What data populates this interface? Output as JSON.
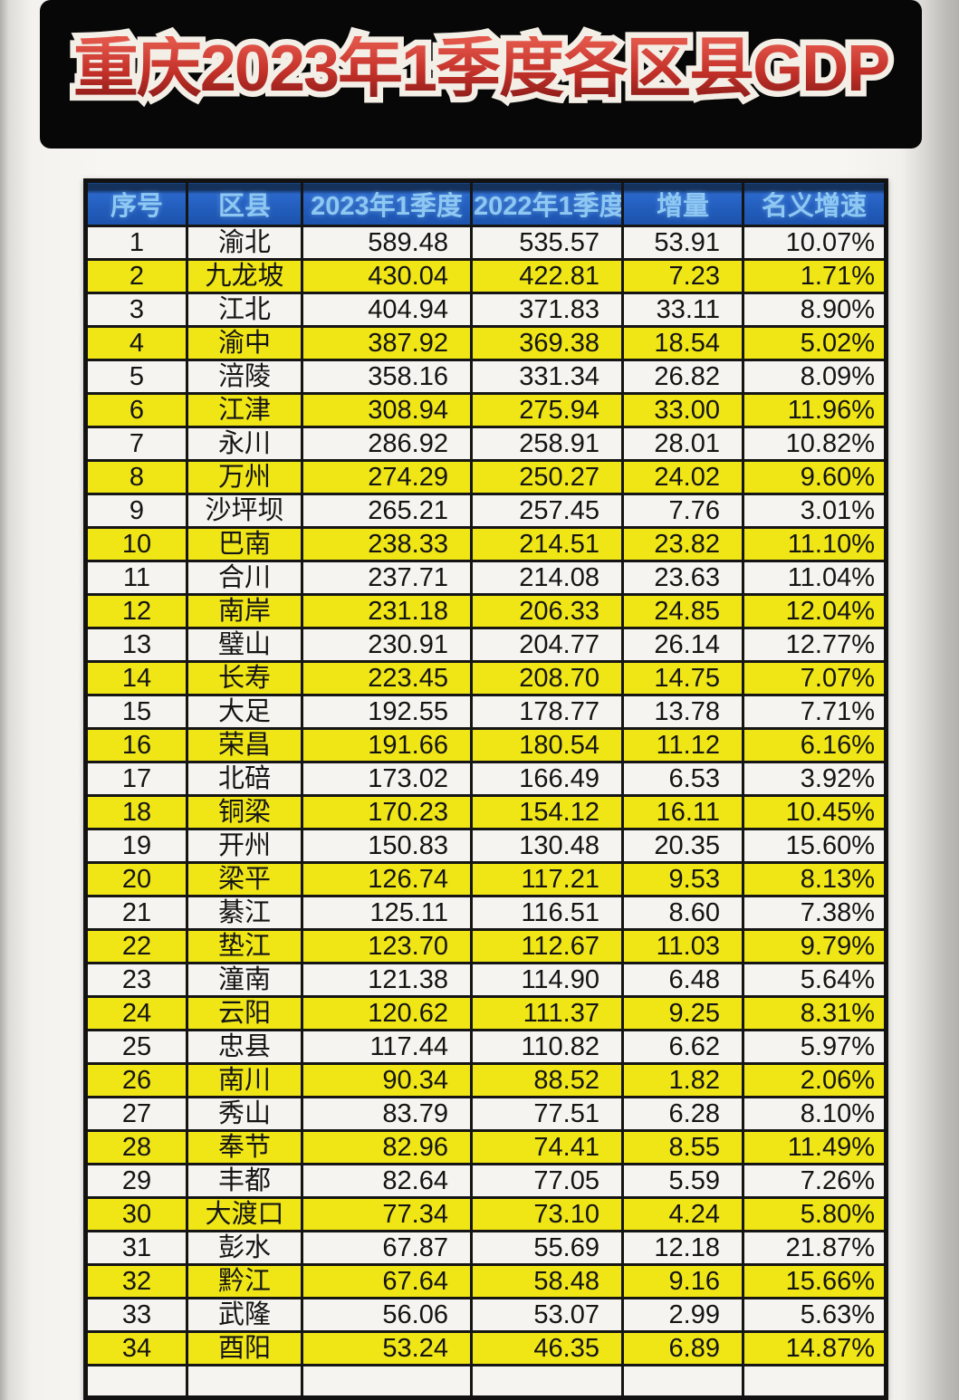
{
  "page": {
    "title": "重庆2023年1季度各区县GDP"
  },
  "colors": {
    "banner_background": "#070707",
    "title_red": "#c33129",
    "title_outline_white": "#f3eee6",
    "header_blue": "#1b52ac",
    "header_text_blue": "#8ec8f2",
    "row_yellow": "#f0e616",
    "row_white": "#f5f4f0",
    "grid_border": "#151515"
  },
  "chart_data": {
    "type": "table",
    "title": "重庆2023年1季度各区县GDP",
    "columns": [
      "序号",
      "区县",
      "2023年1季度",
      "2022年1季度",
      "增量",
      "名义增速"
    ],
    "rows": [
      {
        "rank": "1",
        "name": "渝北",
        "gdp_2023_q1": "589.48",
        "gdp_2022_q1": "535.57",
        "increase": "53.91",
        "growth": "10.07%"
      },
      {
        "rank": "2",
        "name": "九龙坡",
        "gdp_2023_q1": "430.04",
        "gdp_2022_q1": "422.81",
        "increase": "7.23",
        "growth": "1.71%"
      },
      {
        "rank": "3",
        "name": "江北",
        "gdp_2023_q1": "404.94",
        "gdp_2022_q1": "371.83",
        "increase": "33.11",
        "growth": "8.90%"
      },
      {
        "rank": "4",
        "name": "渝中",
        "gdp_2023_q1": "387.92",
        "gdp_2022_q1": "369.38",
        "increase": "18.54",
        "growth": "5.02%"
      },
      {
        "rank": "5",
        "name": "涪陵",
        "gdp_2023_q1": "358.16",
        "gdp_2022_q1": "331.34",
        "increase": "26.82",
        "growth": "8.09%"
      },
      {
        "rank": "6",
        "name": "江津",
        "gdp_2023_q1": "308.94",
        "gdp_2022_q1": "275.94",
        "increase": "33.00",
        "growth": "11.96%"
      },
      {
        "rank": "7",
        "name": "永川",
        "gdp_2023_q1": "286.92",
        "gdp_2022_q1": "258.91",
        "increase": "28.01",
        "growth": "10.82%"
      },
      {
        "rank": "8",
        "name": "万州",
        "gdp_2023_q1": "274.29",
        "gdp_2022_q1": "250.27",
        "increase": "24.02",
        "growth": "9.60%"
      },
      {
        "rank": "9",
        "name": "沙坪坝",
        "gdp_2023_q1": "265.21",
        "gdp_2022_q1": "257.45",
        "increase": "7.76",
        "growth": "3.01%"
      },
      {
        "rank": "10",
        "name": "巴南",
        "gdp_2023_q1": "238.33",
        "gdp_2022_q1": "214.51",
        "increase": "23.82",
        "growth": "11.10%"
      },
      {
        "rank": "11",
        "name": "合川",
        "gdp_2023_q1": "237.71",
        "gdp_2022_q1": "214.08",
        "increase": "23.63",
        "growth": "11.04%"
      },
      {
        "rank": "12",
        "name": "南岸",
        "gdp_2023_q1": "231.18",
        "gdp_2022_q1": "206.33",
        "increase": "24.85",
        "growth": "12.04%"
      },
      {
        "rank": "13",
        "name": "璧山",
        "gdp_2023_q1": "230.91",
        "gdp_2022_q1": "204.77",
        "increase": "26.14",
        "growth": "12.77%"
      },
      {
        "rank": "14",
        "name": "长寿",
        "gdp_2023_q1": "223.45",
        "gdp_2022_q1": "208.70",
        "increase": "14.75",
        "growth": "7.07%"
      },
      {
        "rank": "15",
        "name": "大足",
        "gdp_2023_q1": "192.55",
        "gdp_2022_q1": "178.77",
        "increase": "13.78",
        "growth": "7.71%"
      },
      {
        "rank": "16",
        "name": "荣昌",
        "gdp_2023_q1": "191.66",
        "gdp_2022_q1": "180.54",
        "increase": "11.12",
        "growth": "6.16%"
      },
      {
        "rank": "17",
        "name": "北碚",
        "gdp_2023_q1": "173.02",
        "gdp_2022_q1": "166.49",
        "increase": "6.53",
        "growth": "3.92%"
      },
      {
        "rank": "18",
        "name": "铜梁",
        "gdp_2023_q1": "170.23",
        "gdp_2022_q1": "154.12",
        "increase": "16.11",
        "growth": "10.45%"
      },
      {
        "rank": "19",
        "name": "开州",
        "gdp_2023_q1": "150.83",
        "gdp_2022_q1": "130.48",
        "increase": "20.35",
        "growth": "15.60%"
      },
      {
        "rank": "20",
        "name": "梁平",
        "gdp_2023_q1": "126.74",
        "gdp_2022_q1": "117.21",
        "increase": "9.53",
        "growth": "8.13%"
      },
      {
        "rank": "21",
        "name": "綦江",
        "gdp_2023_q1": "125.11",
        "gdp_2022_q1": "116.51",
        "increase": "8.60",
        "growth": "7.38%"
      },
      {
        "rank": "22",
        "name": "垫江",
        "gdp_2023_q1": "123.70",
        "gdp_2022_q1": "112.67",
        "increase": "11.03",
        "growth": "9.79%"
      },
      {
        "rank": "23",
        "name": "潼南",
        "gdp_2023_q1": "121.38",
        "gdp_2022_q1": "114.90",
        "increase": "6.48",
        "growth": "5.64%"
      },
      {
        "rank": "24",
        "name": "云阳",
        "gdp_2023_q1": "120.62",
        "gdp_2022_q1": "111.37",
        "increase": "9.25",
        "growth": "8.31%"
      },
      {
        "rank": "25",
        "name": "忠县",
        "gdp_2023_q1": "117.44",
        "gdp_2022_q1": "110.82",
        "increase": "6.62",
        "growth": "5.97%"
      },
      {
        "rank": "26",
        "name": "南川",
        "gdp_2023_q1": "90.34",
        "gdp_2022_q1": "88.52",
        "increase": "1.82",
        "growth": "2.06%"
      },
      {
        "rank": "27",
        "name": "秀山",
        "gdp_2023_q1": "83.79",
        "gdp_2022_q1": "77.51",
        "increase": "6.28",
        "growth": "8.10%"
      },
      {
        "rank": "28",
        "name": "奉节",
        "gdp_2023_q1": "82.96",
        "gdp_2022_q1": "74.41",
        "increase": "8.55",
        "growth": "11.49%"
      },
      {
        "rank": "29",
        "name": "丰都",
        "gdp_2023_q1": "82.64",
        "gdp_2022_q1": "77.05",
        "increase": "5.59",
        "growth": "7.26%"
      },
      {
        "rank": "30",
        "name": "大渡口",
        "gdp_2023_q1": "77.34",
        "gdp_2022_q1": "73.10",
        "increase": "4.24",
        "growth": "5.80%"
      },
      {
        "rank": "31",
        "name": "彭水",
        "gdp_2023_q1": "67.87",
        "gdp_2022_q1": "55.69",
        "increase": "12.18",
        "growth": "21.87%"
      },
      {
        "rank": "32",
        "name": "黔江",
        "gdp_2023_q1": "67.64",
        "gdp_2022_q1": "58.48",
        "increase": "9.16",
        "growth": "15.66%"
      },
      {
        "rank": "33",
        "name": "武隆",
        "gdp_2023_q1": "56.06",
        "gdp_2022_q1": "53.07",
        "increase": "2.99",
        "growth": "5.63%"
      },
      {
        "rank": "34",
        "name": "酉阳",
        "gdp_2023_q1": "53.24",
        "gdp_2022_q1": "46.35",
        "increase": "6.89",
        "growth": "14.87%"
      }
    ]
  }
}
